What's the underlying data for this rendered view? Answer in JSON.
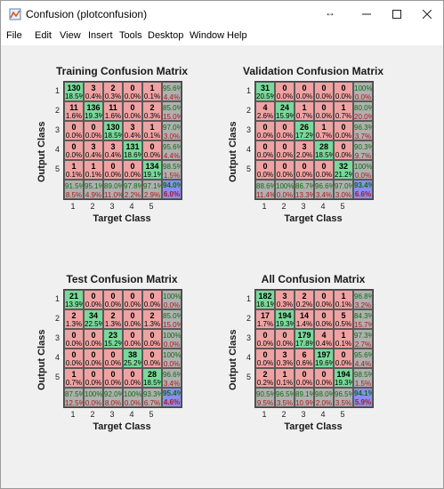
{
  "window": {
    "title": "Confusion (plotconfusion)"
  },
  "menu": [
    "File",
    "Edit",
    "View",
    "Insert",
    "Tools",
    "Desktop",
    "Window",
    "Help"
  ],
  "colors": {
    "correct": "#79d99a",
    "incorrect": "#f0a2a2",
    "summary": "#b0b0b0",
    "total": "#8a8ef0"
  },
  "icons": {
    "app": "matlab-figure-icon",
    "resize": "resize-arrows-icon",
    "minimize": "minimize-icon",
    "maximize": "maximize-icon",
    "close": "close-icon"
  },
  "matrices": [
    {
      "title": "Training Confusion Matrix",
      "xlabel": "Target Class",
      "ylabel": "Output Class",
      "xticks": [
        "1",
        "2",
        "3",
        "4",
        "5"
      ],
      "yticks": [
        "1",
        "2",
        "3",
        "4",
        "5"
      ],
      "counts": [
        [
          130,
          3,
          2,
          0,
          1
        ],
        [
          11,
          136,
          11,
          0,
          2
        ],
        [
          0,
          0,
          130,
          3,
          1
        ],
        [
          0,
          3,
          3,
          131,
          0
        ],
        [
          1,
          1,
          0,
          0,
          134
        ]
      ],
      "pcts": [
        [
          "18.5%",
          "0.4%",
          "0.3%",
          "0.0%",
          "0.1%"
        ],
        [
          "1.6%",
          "19.3%",
          "1.6%",
          "0.0%",
          "0.3%"
        ],
        [
          "0.0%",
          "0.0%",
          "18.5%",
          "0.4%",
          "0.1%"
        ],
        [
          "0.0%",
          "0.4%",
          "0.4%",
          "18.6%",
          "0.0%"
        ],
        [
          "0.1%",
          "0.1%",
          "0.0%",
          "0.0%",
          "19.1%"
        ]
      ],
      "row_summary": [
        [
          "95.6%",
          "4.4%"
        ],
        [
          "85.0%",
          "15.0%"
        ],
        [
          "97.0%",
          "3.0%"
        ],
        [
          "95.6%",
          "4.4%"
        ],
        [
          "98.5%",
          "1.5%"
        ]
      ],
      "col_summary": [
        [
          "91.5%",
          "8.5%"
        ],
        [
          "95.1%",
          "4.9%"
        ],
        [
          "89.0%",
          "11.0%"
        ],
        [
          "97.8%",
          "2.2%"
        ],
        [
          "97.1%",
          "2.9%"
        ]
      ],
      "total": [
        "94.0%",
        "6.0%"
      ]
    },
    {
      "title": "Validation Confusion Matrix",
      "xlabel": "Target Class",
      "ylabel": "Output Class",
      "xticks": [
        "1",
        "2",
        "3",
        "4",
        "5"
      ],
      "yticks": [
        "1",
        "2",
        "3",
        "4",
        "5"
      ],
      "counts": [
        [
          31,
          0,
          0,
          0,
          0
        ],
        [
          4,
          24,
          1,
          0,
          1
        ],
        [
          0,
          0,
          26,
          1,
          0
        ],
        [
          0,
          0,
          3,
          28,
          0
        ],
        [
          0,
          0,
          0,
          0,
          32
        ]
      ],
      "pcts": [
        [
          "20.5%",
          "0.0%",
          "0.0%",
          "0.0%",
          "0.0%"
        ],
        [
          "2.6%",
          "15.9%",
          "0.7%",
          "0.0%",
          "0.7%"
        ],
        [
          "0.0%",
          "0.0%",
          "17.2%",
          "0.7%",
          "0.0%"
        ],
        [
          "0.0%",
          "0.0%",
          "2.0%",
          "18.5%",
          "0.0%"
        ],
        [
          "0.0%",
          "0.0%",
          "0.0%",
          "0.0%",
          "21.2%"
        ]
      ],
      "row_summary": [
        [
          "100%",
          "0.0%"
        ],
        [
          "80.0%",
          "20.0%"
        ],
        [
          "96.3%",
          "3.7%"
        ],
        [
          "90.3%",
          "9.7%"
        ],
        [
          "100%",
          "0.0%"
        ]
      ],
      "col_summary": [
        [
          "88.6%",
          "11.4%"
        ],
        [
          "100%",
          "0.0%"
        ],
        [
          "86.7%",
          "13.3%"
        ],
        [
          "96.6%",
          "3.4%"
        ],
        [
          "97.0%",
          "3.0%"
        ]
      ],
      "total": [
        "93.4%",
        "6.6%"
      ]
    },
    {
      "title": "Test Confusion Matrix",
      "xlabel": "Target Class",
      "ylabel": "Output Class",
      "xticks": [
        "1",
        "2",
        "3",
        "4",
        "5"
      ],
      "yticks": [
        "1",
        "2",
        "3",
        "4",
        "5"
      ],
      "counts": [
        [
          21,
          0,
          0,
          0,
          0
        ],
        [
          2,
          34,
          2,
          0,
          2
        ],
        [
          0,
          0,
          23,
          0,
          0
        ],
        [
          0,
          0,
          0,
          38,
          0
        ],
        [
          1,
          0,
          0,
          0,
          28
        ]
      ],
      "pcts": [
        [
          "13.9%",
          "0.0%",
          "0.0%",
          "0.0%",
          "0.0%"
        ],
        [
          "1.3%",
          "22.5%",
          "1.3%",
          "0.0%",
          "1.3%"
        ],
        [
          "0.0%",
          "0.0%",
          "15.2%",
          "0.0%",
          "0.0%"
        ],
        [
          "0.0%",
          "0.0%",
          "0.0%",
          "25.2%",
          "0.0%"
        ],
        [
          "0.7%",
          "0.0%",
          "0.0%",
          "0.0%",
          "18.5%"
        ]
      ],
      "row_summary": [
        [
          "100%",
          "0.0%"
        ],
        [
          "85.0%",
          "15.0%"
        ],
        [
          "100%",
          "0.0%"
        ],
        [
          "100%",
          "0.0%"
        ],
        [
          "96.6%",
          "3.4%"
        ]
      ],
      "col_summary": [
        [
          "87.5%",
          "12.5%"
        ],
        [
          "100%",
          "0.0%"
        ],
        [
          "92.0%",
          "8.0%"
        ],
        [
          "100%",
          "0.0%"
        ],
        [
          "93.3%",
          "6.7%"
        ]
      ],
      "total": [
        "95.4%",
        "4.6%"
      ]
    },
    {
      "title": "All Confusion Matrix",
      "xlabel": "Target Class",
      "ylabel": "Output Class",
      "xticks": [
        "1",
        "2",
        "3",
        "4",
        "5"
      ],
      "yticks": [
        "1",
        "2",
        "3",
        "4",
        "5"
      ],
      "counts": [
        [
          182,
          3,
          2,
          0,
          1
        ],
        [
          17,
          194,
          14,
          0,
          5
        ],
        [
          0,
          0,
          179,
          4,
          1
        ],
        [
          0,
          3,
          6,
          197,
          0
        ],
        [
          2,
          1,
          0,
          0,
          194
        ]
      ],
      "pcts": [
        [
          "18.1%",
          "0.3%",
          "0.2%",
          "0.0%",
          "0.1%"
        ],
        [
          "1.7%",
          "19.3%",
          "1.4%",
          "0.0%",
          "0.5%"
        ],
        [
          "0.0%",
          "0.0%",
          "17.8%",
          "0.4%",
          "0.1%"
        ],
        [
          "0.0%",
          "0.3%",
          "0.6%",
          "19.6%",
          "0.0%"
        ],
        [
          "0.2%",
          "0.1%",
          "0.0%",
          "0.0%",
          "19.3%"
        ]
      ],
      "row_summary": [
        [
          "96.8%",
          "3.2%"
        ],
        [
          "84.3%",
          "15.7%"
        ],
        [
          "97.3%",
          "2.7%"
        ],
        [
          "95.6%",
          "4.4%"
        ],
        [
          "98.5%",
          "1.5%"
        ]
      ],
      "col_summary": [
        [
          "90.5%",
          "9.5%"
        ],
        [
          "96.5%",
          "3.5%"
        ],
        [
          "89.1%",
          "10.9%"
        ],
        [
          "98.0%",
          "2.0%"
        ],
        [
          "96.5%",
          "3.5%"
        ]
      ],
      "total": [
        "94.1%",
        "5.9%"
      ]
    }
  ]
}
